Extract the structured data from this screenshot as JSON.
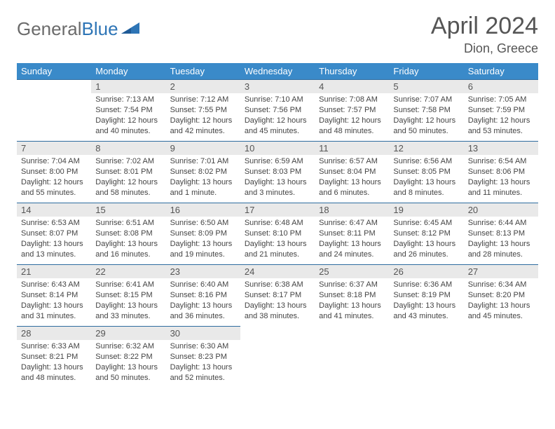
{
  "brand": {
    "part1": "General",
    "part2": "Blue"
  },
  "header": {
    "title": "April 2024",
    "location": "Dion, Greece"
  },
  "colors": {
    "header_bg": "#3a8ac9",
    "header_text": "#ffffff",
    "daynum_bg": "#e9e9e9",
    "row_divider": "#2e6ca0",
    "body_text": "#444444",
    "title_text": "#555555",
    "logo_gray": "#6b6b6b",
    "logo_blue": "#2e75b6"
  },
  "weekdays": [
    "Sunday",
    "Monday",
    "Tuesday",
    "Wednesday",
    "Thursday",
    "Friday",
    "Saturday"
  ],
  "grid": [
    [
      {
        "n": "",
        "sr": "",
        "ss": "",
        "dl1": "",
        "dl2": "",
        "empty": true
      },
      {
        "n": "1",
        "sr": "Sunrise: 7:13 AM",
        "ss": "Sunset: 7:54 PM",
        "dl1": "Daylight: 12 hours",
        "dl2": "and 40 minutes."
      },
      {
        "n": "2",
        "sr": "Sunrise: 7:12 AM",
        "ss": "Sunset: 7:55 PM",
        "dl1": "Daylight: 12 hours",
        "dl2": "and 42 minutes."
      },
      {
        "n": "3",
        "sr": "Sunrise: 7:10 AM",
        "ss": "Sunset: 7:56 PM",
        "dl1": "Daylight: 12 hours",
        "dl2": "and 45 minutes."
      },
      {
        "n": "4",
        "sr": "Sunrise: 7:08 AM",
        "ss": "Sunset: 7:57 PM",
        "dl1": "Daylight: 12 hours",
        "dl2": "and 48 minutes."
      },
      {
        "n": "5",
        "sr": "Sunrise: 7:07 AM",
        "ss": "Sunset: 7:58 PM",
        "dl1": "Daylight: 12 hours",
        "dl2": "and 50 minutes."
      },
      {
        "n": "6",
        "sr": "Sunrise: 7:05 AM",
        "ss": "Sunset: 7:59 PM",
        "dl1": "Daylight: 12 hours",
        "dl2": "and 53 minutes."
      }
    ],
    [
      {
        "n": "7",
        "sr": "Sunrise: 7:04 AM",
        "ss": "Sunset: 8:00 PM",
        "dl1": "Daylight: 12 hours",
        "dl2": "and 55 minutes."
      },
      {
        "n": "8",
        "sr": "Sunrise: 7:02 AM",
        "ss": "Sunset: 8:01 PM",
        "dl1": "Daylight: 12 hours",
        "dl2": "and 58 minutes."
      },
      {
        "n": "9",
        "sr": "Sunrise: 7:01 AM",
        "ss": "Sunset: 8:02 PM",
        "dl1": "Daylight: 13 hours",
        "dl2": "and 1 minute."
      },
      {
        "n": "10",
        "sr": "Sunrise: 6:59 AM",
        "ss": "Sunset: 8:03 PM",
        "dl1": "Daylight: 13 hours",
        "dl2": "and 3 minutes."
      },
      {
        "n": "11",
        "sr": "Sunrise: 6:57 AM",
        "ss": "Sunset: 8:04 PM",
        "dl1": "Daylight: 13 hours",
        "dl2": "and 6 minutes."
      },
      {
        "n": "12",
        "sr": "Sunrise: 6:56 AM",
        "ss": "Sunset: 8:05 PM",
        "dl1": "Daylight: 13 hours",
        "dl2": "and 8 minutes."
      },
      {
        "n": "13",
        "sr": "Sunrise: 6:54 AM",
        "ss": "Sunset: 8:06 PM",
        "dl1": "Daylight: 13 hours",
        "dl2": "and 11 minutes."
      }
    ],
    [
      {
        "n": "14",
        "sr": "Sunrise: 6:53 AM",
        "ss": "Sunset: 8:07 PM",
        "dl1": "Daylight: 13 hours",
        "dl2": "and 13 minutes."
      },
      {
        "n": "15",
        "sr": "Sunrise: 6:51 AM",
        "ss": "Sunset: 8:08 PM",
        "dl1": "Daylight: 13 hours",
        "dl2": "and 16 minutes."
      },
      {
        "n": "16",
        "sr": "Sunrise: 6:50 AM",
        "ss": "Sunset: 8:09 PM",
        "dl1": "Daylight: 13 hours",
        "dl2": "and 19 minutes."
      },
      {
        "n": "17",
        "sr": "Sunrise: 6:48 AM",
        "ss": "Sunset: 8:10 PM",
        "dl1": "Daylight: 13 hours",
        "dl2": "and 21 minutes."
      },
      {
        "n": "18",
        "sr": "Sunrise: 6:47 AM",
        "ss": "Sunset: 8:11 PM",
        "dl1": "Daylight: 13 hours",
        "dl2": "and 24 minutes."
      },
      {
        "n": "19",
        "sr": "Sunrise: 6:45 AM",
        "ss": "Sunset: 8:12 PM",
        "dl1": "Daylight: 13 hours",
        "dl2": "and 26 minutes."
      },
      {
        "n": "20",
        "sr": "Sunrise: 6:44 AM",
        "ss": "Sunset: 8:13 PM",
        "dl1": "Daylight: 13 hours",
        "dl2": "and 28 minutes."
      }
    ],
    [
      {
        "n": "21",
        "sr": "Sunrise: 6:43 AM",
        "ss": "Sunset: 8:14 PM",
        "dl1": "Daylight: 13 hours",
        "dl2": "and 31 minutes."
      },
      {
        "n": "22",
        "sr": "Sunrise: 6:41 AM",
        "ss": "Sunset: 8:15 PM",
        "dl1": "Daylight: 13 hours",
        "dl2": "and 33 minutes."
      },
      {
        "n": "23",
        "sr": "Sunrise: 6:40 AM",
        "ss": "Sunset: 8:16 PM",
        "dl1": "Daylight: 13 hours",
        "dl2": "and 36 minutes."
      },
      {
        "n": "24",
        "sr": "Sunrise: 6:38 AM",
        "ss": "Sunset: 8:17 PM",
        "dl1": "Daylight: 13 hours",
        "dl2": "and 38 minutes."
      },
      {
        "n": "25",
        "sr": "Sunrise: 6:37 AM",
        "ss": "Sunset: 8:18 PM",
        "dl1": "Daylight: 13 hours",
        "dl2": "and 41 minutes."
      },
      {
        "n": "26",
        "sr": "Sunrise: 6:36 AM",
        "ss": "Sunset: 8:19 PM",
        "dl1": "Daylight: 13 hours",
        "dl2": "and 43 minutes."
      },
      {
        "n": "27",
        "sr": "Sunrise: 6:34 AM",
        "ss": "Sunset: 8:20 PM",
        "dl1": "Daylight: 13 hours",
        "dl2": "and 45 minutes."
      }
    ],
    [
      {
        "n": "28",
        "sr": "Sunrise: 6:33 AM",
        "ss": "Sunset: 8:21 PM",
        "dl1": "Daylight: 13 hours",
        "dl2": "and 48 minutes."
      },
      {
        "n": "29",
        "sr": "Sunrise: 6:32 AM",
        "ss": "Sunset: 8:22 PM",
        "dl1": "Daylight: 13 hours",
        "dl2": "and 50 minutes."
      },
      {
        "n": "30",
        "sr": "Sunrise: 6:30 AM",
        "ss": "Sunset: 8:23 PM",
        "dl1": "Daylight: 13 hours",
        "dl2": "and 52 minutes."
      },
      {
        "n": "",
        "sr": "",
        "ss": "",
        "dl1": "",
        "dl2": "",
        "empty": true,
        "trailing": true
      },
      {
        "n": "",
        "sr": "",
        "ss": "",
        "dl1": "",
        "dl2": "",
        "empty": true,
        "trailing": true
      },
      {
        "n": "",
        "sr": "",
        "ss": "",
        "dl1": "",
        "dl2": "",
        "empty": true,
        "trailing": true
      },
      {
        "n": "",
        "sr": "",
        "ss": "",
        "dl1": "",
        "dl2": "",
        "empty": true,
        "trailing": true
      }
    ]
  ]
}
